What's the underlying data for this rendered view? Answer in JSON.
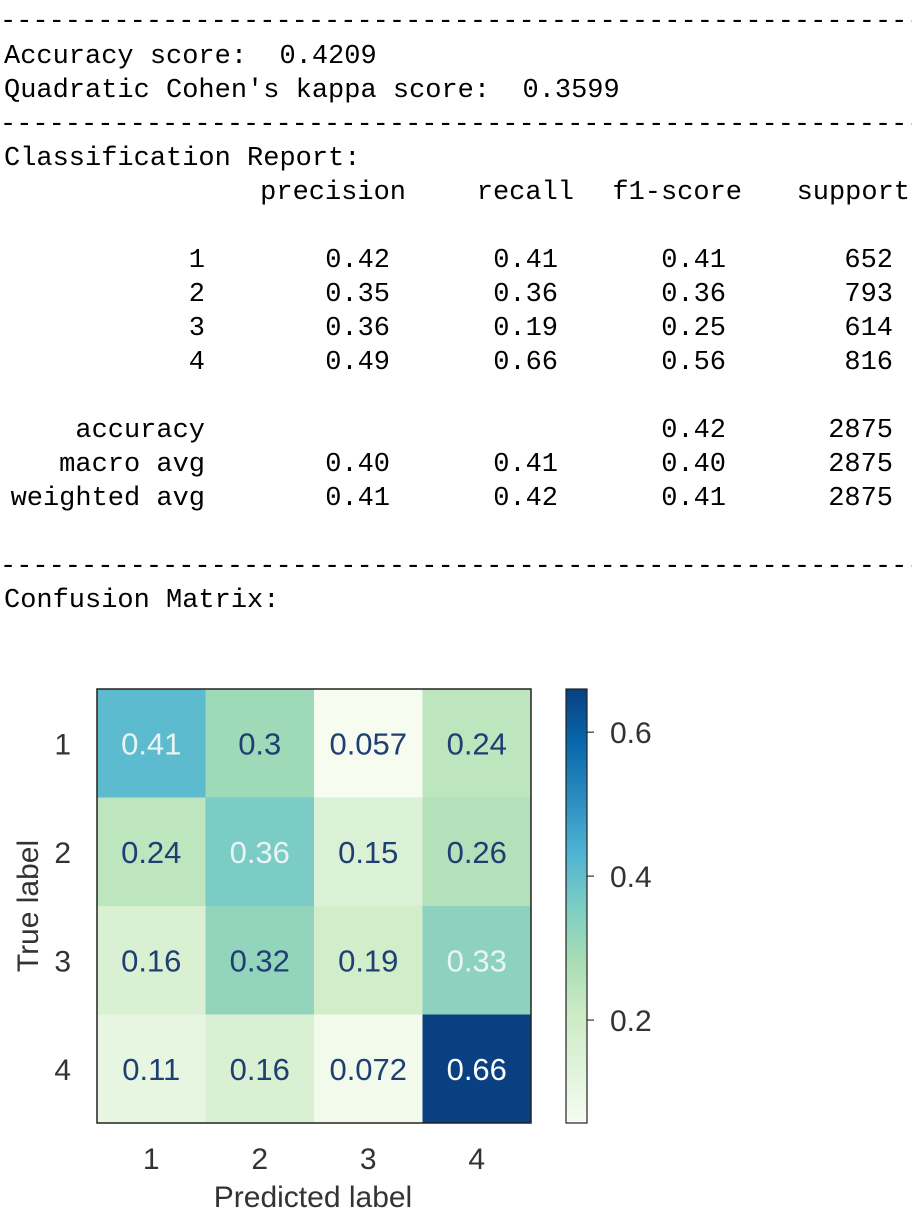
{
  "separator": "----------------------------------------------------------------",
  "metrics": {
    "accuracy_label": "Accuracy score:",
    "accuracy_value": "0.4209",
    "kappa_label": "Quadratic Cohen's kappa score:",
    "kappa_value": "0.3599"
  },
  "report": {
    "title": "Classification Report:",
    "headers": [
      "precision",
      "recall",
      "f1-score",
      "support"
    ],
    "rows": [
      {
        "label": "1",
        "precision": "0.42",
        "recall": "0.41",
        "f1": "0.41",
        "support": "652"
      },
      {
        "label": "2",
        "precision": "0.35",
        "recall": "0.36",
        "f1": "0.36",
        "support": "793"
      },
      {
        "label": "3",
        "precision": "0.36",
        "recall": "0.19",
        "f1": "0.25",
        "support": "614"
      },
      {
        "label": "4",
        "precision": "0.49",
        "recall": "0.66",
        "f1": "0.56",
        "support": "816"
      }
    ],
    "summary": [
      {
        "label": "accuracy",
        "precision": "",
        "recall": "",
        "f1": "0.42",
        "support": "2875"
      },
      {
        "label": "macro avg",
        "precision": "0.40",
        "recall": "0.41",
        "f1": "0.40",
        "support": "2875"
      },
      {
        "label": "weighted avg",
        "precision": "0.41",
        "recall": "0.42",
        "f1": "0.41",
        "support": "2875"
      }
    ]
  },
  "confusion_title": "Confusion Matrix:",
  "chart_data": {
    "type": "heatmap",
    "colormap": "GnBu",
    "xlabel": "Predicted label",
    "ylabel": "True label",
    "x_categories": [
      "1",
      "2",
      "3",
      "4"
    ],
    "y_categories": [
      "1",
      "2",
      "3",
      "4"
    ],
    "values": [
      [
        0.41,
        0.3,
        0.057,
        0.24
      ],
      [
        0.24,
        0.36,
        0.15,
        0.26
      ],
      [
        0.16,
        0.32,
        0.19,
        0.33
      ],
      [
        0.11,
        0.16,
        0.072,
        0.66
      ]
    ],
    "cell_labels": [
      [
        "0.41",
        "0.3",
        "0.057",
        "0.24"
      ],
      [
        "0.24",
        "0.36",
        "0.15",
        "0.26"
      ],
      [
        "0.16",
        "0.32",
        "0.19",
        "0.33"
      ],
      [
        "0.11",
        "0.16",
        "0.072",
        "0.66"
      ]
    ],
    "colorbar": {
      "range": [
        0.057,
        0.66
      ],
      "ticks": [
        0.2,
        0.4,
        0.6
      ],
      "tick_labels": [
        "0.2",
        "0.4",
        "0.6"
      ]
    }
  }
}
